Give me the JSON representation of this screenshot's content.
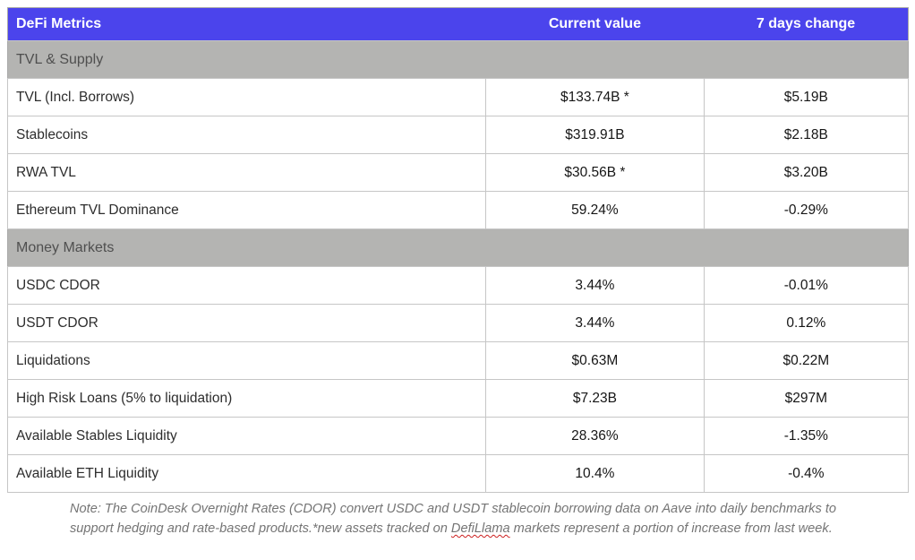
{
  "colors": {
    "header_bg": "#4b44ec",
    "header_fg": "#ffffff",
    "section_bg": "#b4b4b2",
    "section_fg": "#4f4f4f",
    "row_label_fg": "#2d2d2d",
    "row_value_fg": "#161616",
    "border_inner": "#c6c6c6",
    "border_outer": "#a9a9a9",
    "note_fg": "#757575",
    "squiggle": "#cc1f1f"
  },
  "chart_data": {
    "type": "table",
    "title": "DeFi Metrics",
    "columns": [
      "DeFi Metrics",
      "Current value",
      "7 days change"
    ],
    "sections": [
      {
        "label": "TVL & Supply",
        "rows": [
          {
            "label": "TVL (Incl. Borrows)",
            "current": "$133.74B *",
            "change": "$5.19B"
          },
          {
            "label": "Stablecoins",
            "current": "$319.91B",
            "change": "$2.18B"
          },
          {
            "label": "RWA TVL",
            "current": "$30.56B *",
            "change": "$3.20B"
          },
          {
            "label": "Ethereum TVL Dominance",
            "current": "59.24%",
            "change": "-0.29%"
          }
        ]
      },
      {
        "label": "Money Markets",
        "rows": [
          {
            "label": "USDC CDOR",
            "current": "3.44%",
            "change": "-0.01%"
          },
          {
            "label": "USDT CDOR",
            "current": "3.44%",
            "change": "0.12%"
          },
          {
            "label": "Liquidations",
            "current": "$0.63M",
            "change": "$0.22M"
          },
          {
            "label": "High Risk Loans (5% to liquidation)",
            "current": "$7.23B",
            "change": "$297M"
          },
          {
            "label": "Available Stables Liquidity",
            "current": "28.36%",
            "change": "-1.35%"
          },
          {
            "label": "Available ETH Liquidity",
            "current": "10.4%",
            "change": "-0.4%"
          }
        ]
      }
    ],
    "note": {
      "part1": "Note: The CoinDesk Overnight Rates (CDOR) convert USDC and USDT stablecoin borrowing data on Aave into daily benchmarks to support hedging and rate-based products.*new assets tracked on ",
      "misspelled_word": "DefiLlama",
      "part2": " markets represent a portion of increase from last week."
    }
  }
}
